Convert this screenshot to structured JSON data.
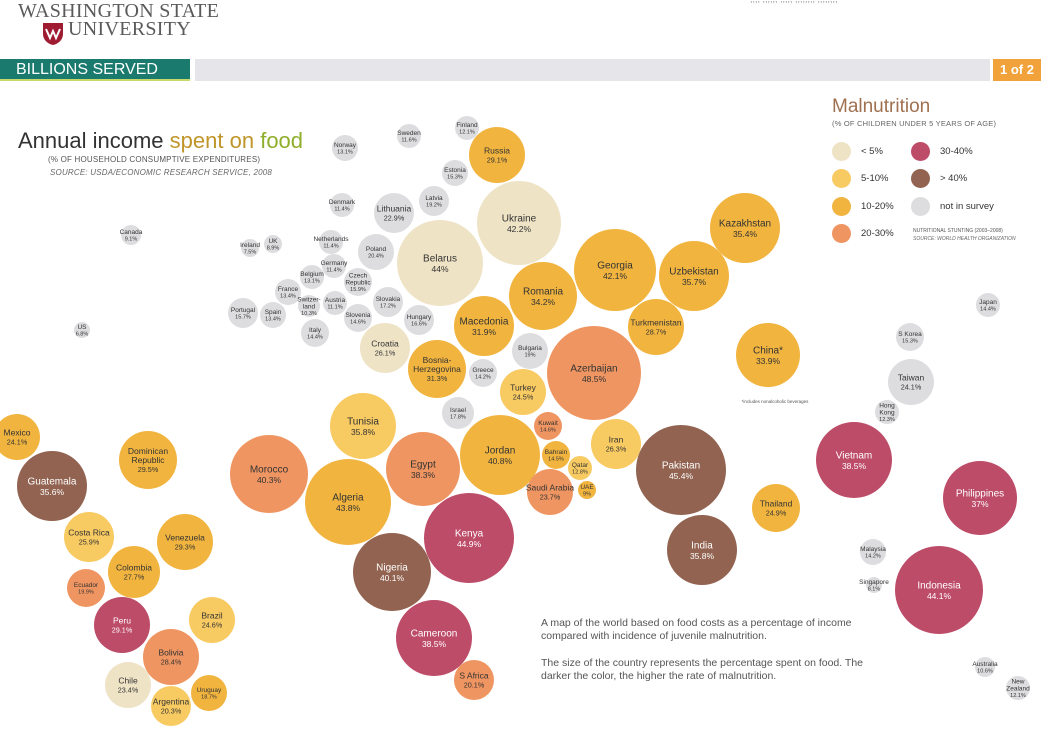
{
  "header": {
    "logo_line1": "WASHINGTON STATE",
    "logo_line2": "UNIVERSITY",
    "top_fragment": ",,,, ,,,,,, ,,,,, ,,,,,,,, ,,,,,,,,"
  },
  "nav": {
    "title": "BILLIONS SERVED",
    "page": "1 of 2"
  },
  "footnote": "*includes nonalcoholic beverages",
  "description": {
    "line1": "A map of the world based on food costs as a percentage of income compared with incidence of juvenile malnutrition.",
    "line2": "The size of the country represents the percentage spent on food. The darker the color, the higher the rate of malnutrition."
  },
  "colors": {
    "lt5": "#efe3c6",
    "c5_10": "#f8ca62",
    "c10_20": "#f1b43f",
    "c20_30": "#ef9561",
    "c30_40": "#bd4c69",
    "gt40": "#916350",
    "nosurvey": "#dddde0"
  },
  "chart_data": {
    "type": "bubble",
    "title_parts": [
      "Annual income",
      "spent on",
      "food"
    ],
    "subtitle": "(% OF HOUSEHOLD CONSUMPTIVE EXPENDITURES)",
    "source": "SOURCE: USDA/ECONOMIC RESEARCH SERVICE, 2008",
    "legend": {
      "title": "Malnutrition",
      "subtitle": "(% OF CHILDREN UNDER 5 YEARS OF AGE)",
      "items": [
        {
          "key": "lt5",
          "label": "< 5%"
        },
        {
          "key": "c5_10",
          "label": "5-10%"
        },
        {
          "key": "c10_20",
          "label": "10-20%"
        },
        {
          "key": "c20_30",
          "label": "20-30%"
        },
        {
          "key": "c30_40",
          "label": "30-40%"
        },
        {
          "key": "gt40",
          "label": "> 40%"
        },
        {
          "key": "nosurvey",
          "label": "not in survey"
        }
      ],
      "note": "NUTRITIONAL STUNTING (2003–2008)",
      "note_source": "SOURCE: WORLD HEALTH ORGANIZATION"
    },
    "countries": [
      {
        "name": "Finland",
        "value": "12.1%",
        "cat": "nosurvey"
      },
      {
        "name": "Sweden",
        "value": "11.6%",
        "cat": "nosurvey"
      },
      {
        "name": "Norway",
        "value": "13.1%",
        "cat": "nosurvey"
      },
      {
        "name": "Russia",
        "value": "29.1%",
        "cat": "c10_20"
      },
      {
        "name": "Estonia",
        "value": "15.3%",
        "cat": "nosurvey"
      },
      {
        "name": "Latvia",
        "value": "19.2%",
        "cat": "nosurvey"
      },
      {
        "name": "Denmark",
        "value": "11.4%",
        "cat": "nosurvey"
      },
      {
        "name": "Lithuania",
        "value": "22.9%",
        "cat": "nosurvey"
      },
      {
        "name": "Ukraine",
        "value": "42.2%",
        "cat": "lt5"
      },
      {
        "name": "Canada",
        "value": "9.1%",
        "cat": "nosurvey"
      },
      {
        "name": "Ireland",
        "value": "7.5%",
        "cat": "nosurvey"
      },
      {
        "name": "UK",
        "value": "8.9%",
        "cat": "nosurvey"
      },
      {
        "name": "Netherlands",
        "value": "11.4%",
        "cat": "nosurvey"
      },
      {
        "name": "Poland",
        "value": "20.4%",
        "cat": "nosurvey"
      },
      {
        "name": "Belarus",
        "value": "44%",
        "cat": "lt5"
      },
      {
        "name": "Kazakhstan",
        "value": "35.4%",
        "cat": "c10_20"
      },
      {
        "name": "Germany",
        "value": "11.4%",
        "cat": "nosurvey"
      },
      {
        "name": "Belgium",
        "value": "13.1%",
        "cat": "nosurvey"
      },
      {
        "name": "France",
        "value": "13.4%",
        "cat": "nosurvey"
      },
      {
        "name": "Czech Republic",
        "value": "15.9%",
        "cat": "nosurvey"
      },
      {
        "name": "Austria",
        "value": "11.1%",
        "cat": "nosurvey"
      },
      {
        "name": "Switzerland",
        "value": "10.3%",
        "cat": "nosurvey"
      },
      {
        "name": "Slovakia",
        "value": "17.2%",
        "cat": "nosurvey"
      },
      {
        "name": "Georgia",
        "value": "42.1%",
        "cat": "c10_20"
      },
      {
        "name": "Uzbekistan",
        "value": "35.7%",
        "cat": "c10_20"
      },
      {
        "name": "Romania",
        "value": "34.2%",
        "cat": "c10_20"
      },
      {
        "name": "Portugal",
        "value": "15.7%",
        "cat": "nosurvey"
      },
      {
        "name": "Spain",
        "value": "13.4%",
        "cat": "nosurvey"
      },
      {
        "name": "Slovenia",
        "value": "14.6%",
        "cat": "nosurvey"
      },
      {
        "name": "Hungary",
        "value": "16.6%",
        "cat": "nosurvey"
      },
      {
        "name": "Macedonia",
        "value": "31.9%",
        "cat": "c10_20"
      },
      {
        "name": "Turkmenistan",
        "value": "28.7%",
        "cat": "c10_20"
      },
      {
        "name": "Japan",
        "value": "14.4%",
        "cat": "nosurvey"
      },
      {
        "name": "US",
        "value": "6.8%",
        "cat": "nosurvey"
      },
      {
        "name": "Italy",
        "value": "14.4%",
        "cat": "nosurvey"
      },
      {
        "name": "Croatia",
        "value": "26.1%",
        "cat": "lt5"
      },
      {
        "name": "Bulgaria",
        "value": "19%",
        "cat": "nosurvey"
      },
      {
        "name": "S Korea",
        "value": "15.3%",
        "cat": "nosurvey"
      },
      {
        "name": "China*",
        "value": "33.9%",
        "cat": "c10_20"
      },
      {
        "name": "Azerbaijan",
        "value": "48.5%",
        "cat": "c20_30"
      },
      {
        "name": "Bosnia-Herzegovina",
        "value": "31.3%",
        "cat": "c10_20"
      },
      {
        "name": "Greece",
        "value": "14.2%",
        "cat": "nosurvey"
      },
      {
        "name": "Turkey",
        "value": "24.5%",
        "cat": "c5_10"
      },
      {
        "name": "Taiwan",
        "value": "24.1%",
        "cat": "nosurvey"
      },
      {
        "name": "Hong Kong",
        "value": "12.3%",
        "cat": "nosurvey"
      },
      {
        "name": "Israel",
        "value": "17.8%",
        "cat": "nosurvey"
      },
      {
        "name": "Tunisia",
        "value": "35.8%",
        "cat": "c5_10"
      },
      {
        "name": "Kuwait",
        "value": "14.6%",
        "cat": "c20_30"
      },
      {
        "name": "Mexico",
        "value": "24.1%",
        "cat": "c10_20"
      },
      {
        "name": "Iran",
        "value": "26.3%",
        "cat": "c5_10"
      },
      {
        "name": "Bahrain",
        "value": "14.5%",
        "cat": "c10_20"
      },
      {
        "name": "Dominican Republic",
        "value": "29.5%",
        "cat": "c10_20"
      },
      {
        "name": "Morocco",
        "value": "40.3%",
        "cat": "c20_30"
      },
      {
        "name": "Egypt",
        "value": "38.3%",
        "cat": "c20_30"
      },
      {
        "name": "Jordan",
        "value": "40.8%",
        "cat": "c10_20"
      },
      {
        "name": "Qatar",
        "value": "12.8%",
        "cat": "c5_10"
      },
      {
        "name": "Pakistan",
        "value": "45.4%",
        "cat": "gt40"
      },
      {
        "name": "Vietnam",
        "value": "38.5%",
        "cat": "c30_40"
      },
      {
        "name": "Guatemala",
        "value": "35.6%",
        "cat": "gt40"
      },
      {
        "name": "Saudi Arabia",
        "value": "23.7%",
        "cat": "c20_30"
      },
      {
        "name": "UAE",
        "value": "9%",
        "cat": "c10_20"
      },
      {
        "name": "Algeria",
        "value": "43.8%",
        "cat": "c10_20"
      },
      {
        "name": "Philippines",
        "value": "37%",
        "cat": "c30_40"
      },
      {
        "name": "Thailand",
        "value": "24.9%",
        "cat": "c10_20"
      },
      {
        "name": "Costa Rica",
        "value": "25.9%",
        "cat": "c5_10"
      },
      {
        "name": "Venezuela",
        "value": "29.3%",
        "cat": "c10_20"
      },
      {
        "name": "Kenya",
        "value": "44.9%",
        "cat": "c30_40"
      },
      {
        "name": "India",
        "value": "35.8%",
        "cat": "gt40"
      },
      {
        "name": "Colombia",
        "value": "27.7%",
        "cat": "c10_20"
      },
      {
        "name": "Malaysia",
        "value": "14.2%",
        "cat": "nosurvey"
      },
      {
        "name": "Nigeria",
        "value": "40.1%",
        "cat": "gt40"
      },
      {
        "name": "Ecuador",
        "value": "19.9%",
        "cat": "c20_30"
      },
      {
        "name": "Singapore",
        "value": "8.1%",
        "cat": "nosurvey"
      },
      {
        "name": "Indonesia",
        "value": "44.1%",
        "cat": "c30_40"
      },
      {
        "name": "Brazil",
        "value": "24.6%",
        "cat": "c5_10"
      },
      {
        "name": "Peru",
        "value": "29.1%",
        "cat": "c30_40"
      },
      {
        "name": "Cameroon",
        "value": "38.5%",
        "cat": "c30_40"
      },
      {
        "name": "Bolivia",
        "value": "28.4%",
        "cat": "c20_30"
      },
      {
        "name": "Chile",
        "value": "23.4%",
        "cat": "lt5"
      },
      {
        "name": "S Africa",
        "value": "20.1%",
        "cat": "c20_30"
      },
      {
        "name": "Australia",
        "value": "10.6%",
        "cat": "nosurvey"
      },
      {
        "name": "Uruguay",
        "value": "18.7%",
        "cat": "c10_20"
      },
      {
        "name": "Argentina",
        "value": "20.3%",
        "cat": "c5_10"
      },
      {
        "name": "New Zealand",
        "value": "12.1%",
        "cat": "nosurvey"
      }
    ]
  }
}
